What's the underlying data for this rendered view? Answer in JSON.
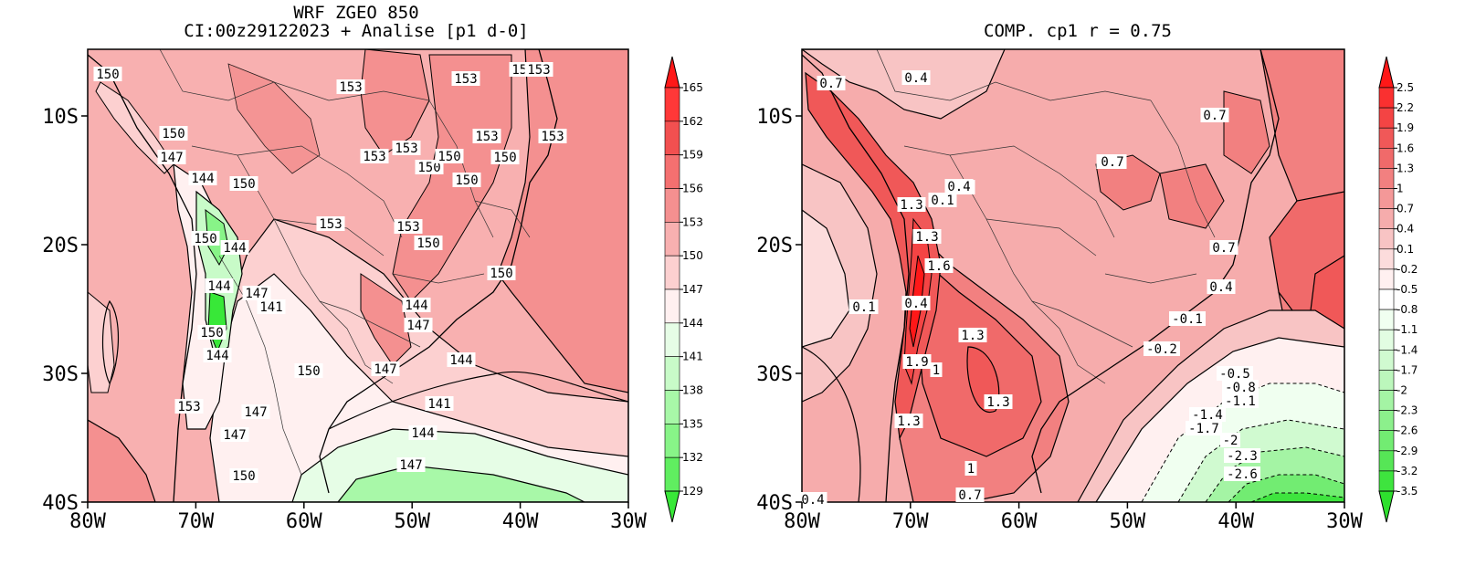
{
  "left_panel": {
    "title_line1": "WRF ZGEO 850",
    "title_line2": "CI:00z29122023 + Analise  [p1 d-0]",
    "colorbar_ticks": [
      "165",
      "162",
      "159",
      "156",
      "153",
      "150",
      "147",
      "144",
      "141",
      "138",
      "135",
      "132",
      "129"
    ],
    "colorbar_colors": [
      "#ff1818",
      "#ff3838",
      "#f25050",
      "#f47070",
      "#f49090",
      "#f8b0b0",
      "#fcd0d0",
      "#fff0f0",
      "#e6fde6",
      "#c8fbc8",
      "#a8f8a8",
      "#88f488",
      "#60ee60",
      "#38e838"
    ],
    "contour_labels": [
      "150",
      "150",
      "147",
      "144",
      "150",
      "153",
      "153",
      "153",
      "153",
      "153",
      "153",
      "153",
      "150",
      "150",
      "153",
      "150",
      "150",
      "153",
      "153",
      "150",
      "150",
      "144",
      "144",
      "150",
      "144",
      "147",
      "141",
      "144",
      "147",
      "150",
      "153",
      "147",
      "147",
      "150",
      "147",
      "144",
      "141",
      "144",
      "147",
      "150"
    ]
  },
  "right_panel": {
    "title": "COMP. cp1   r =  0.75",
    "colorbar_ticks": [
      "2.5",
      "2.2",
      "1.9",
      "1.6",
      "1.3",
      "1",
      "0.7",
      "0.4",
      "0.1",
      "-0.2",
      "-0.5",
      "-0.8",
      "-1.1",
      "-1.4",
      "-1.7",
      "-2",
      "-2.3",
      "-2.6",
      "-2.9",
      "-3.2",
      "-3.5"
    ],
    "colorbar_colors": [
      "#ff1818",
      "#fa3030",
      "#f44444",
      "#f05858",
      "#f06a6a",
      "#f28080",
      "#f49898",
      "#f6acac",
      "#f8c4c4",
      "#fcdcdc",
      "#fff0f0",
      "#ffffff",
      "#f0fff0",
      "#e2fde2",
      "#d0fad0",
      "#bcf7bc",
      "#a4f4a4",
      "#8cf08c",
      "#72ec72",
      "#56e656",
      "#3ee43e",
      "#2ee02e"
    ],
    "contour_labels": [
      "0.4",
      "0.7",
      "0.7",
      "0.7",
      "0.4",
      "0.1",
      "1.3",
      "0.1",
      "1.3",
      "1.6",
      "0.4",
      "0.4",
      "0.1",
      "1.3",
      "1.9",
      "1",
      "1.3",
      "0.7",
      "0.4",
      "-0.1",
      "-0.2",
      "-0.5",
      "-0.8",
      "-1.1",
      "-1.4",
      "-1.7",
      "-2",
      "-2.3",
      "-2.6",
      "1.3",
      "1",
      "0.7",
      "0.4",
      "0.7",
      "0.1"
    ]
  },
  "axes": {
    "lat_labels": [
      "10S",
      "20S",
      "30S",
      "40S"
    ],
    "lon_labels": [
      "80W",
      "70W",
      "60W",
      "50W",
      "40W",
      "30W"
    ]
  }
}
